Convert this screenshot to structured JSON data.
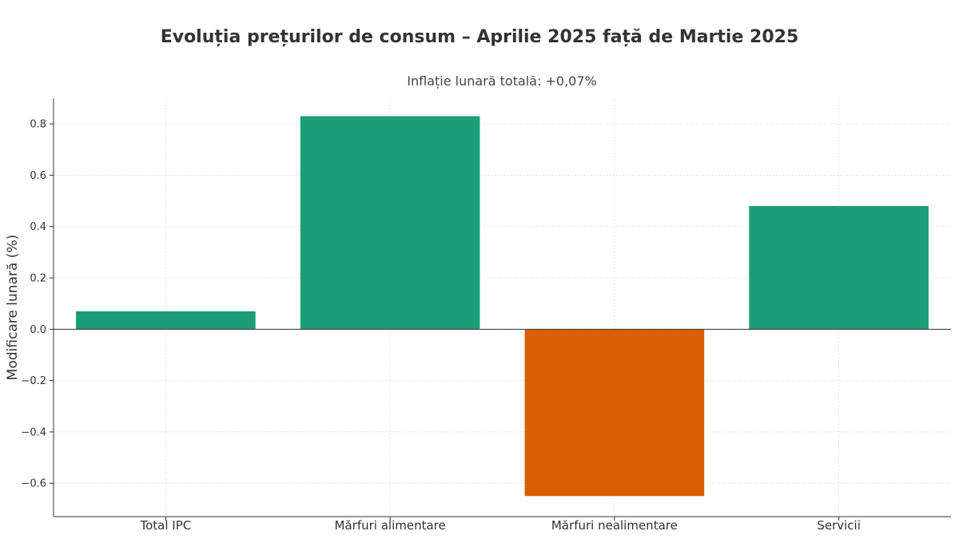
{
  "chart_data": {
    "type": "bar",
    "title": "Evoluția prețurilor de consum – Aprilie 2025 față de Martie 2025",
    "subtitle": "Inflație lunară totală: +0,07%",
    "xlabel": "",
    "ylabel": "Modificare lunară (%)",
    "categories": [
      "Total IPC",
      "Mărfuri alimentare",
      "Mărfuri nealimentare",
      "Servicii"
    ],
    "values": [
      0.07,
      0.83,
      -0.65,
      0.48
    ],
    "ylim": [
      -0.73,
      0.9
    ],
    "yticks": [
      -0.6,
      -0.4,
      -0.2,
      0.0,
      0.2,
      0.4,
      0.6,
      0.8
    ],
    "ytick_labels": [
      "−0.6",
      "−0.4",
      "−0.2",
      "0.0",
      "0.2",
      "0.4",
      "0.6",
      "0.8"
    ],
    "grid": true,
    "colors": {
      "positive": "#1b9e77",
      "negative": "#d95f02",
      "axis": "#333333",
      "grid": "#dddddd"
    }
  }
}
